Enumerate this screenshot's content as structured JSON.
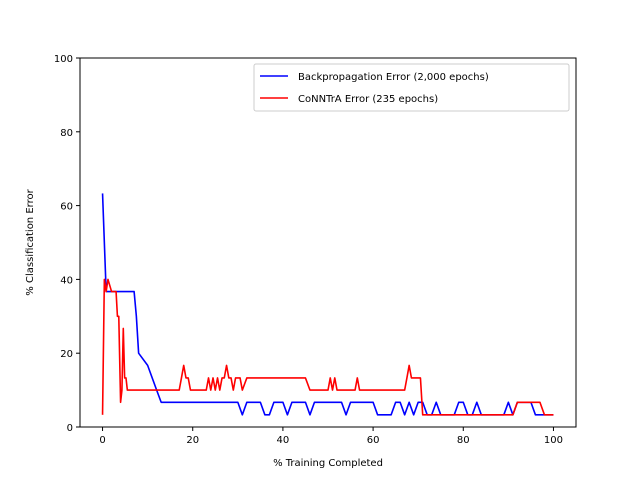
{
  "chart_data": {
    "type": "line",
    "title": "",
    "xlabel": "% Training Completed",
    "ylabel": "% Classification Error",
    "xlim": [
      -5,
      105
    ],
    "ylim": [
      0,
      100
    ],
    "xticks": [
      0,
      20,
      40,
      60,
      80,
      100
    ],
    "yticks": [
      0,
      20,
      40,
      60,
      80,
      100
    ],
    "grid": false,
    "legend_position": "top-right",
    "series": [
      {
        "name": "Backpropagation Error (2,000 epochs)",
        "color": "#0000ff",
        "x": [
          0,
          0.8,
          1,
          7,
          7.5,
          8,
          10,
          12,
          13,
          14,
          30,
          31,
          32,
          35,
          36,
          37,
          38,
          39,
          40,
          41,
          42,
          45,
          46,
          47,
          53,
          54,
          55,
          60,
          61,
          64,
          65,
          66,
          67,
          68,
          69,
          70,
          71,
          72,
          73,
          74,
          75,
          78,
          79,
          80,
          81,
          82,
          83,
          84,
          89,
          90,
          91,
          92,
          93,
          95,
          96,
          97,
          98,
          99,
          100
        ],
        "y": [
          63.3,
          36.7,
          36.7,
          36.7,
          30,
          20,
          16.7,
          10,
          6.7,
          6.7,
          6.7,
          3.3,
          6.7,
          6.7,
          3.3,
          3.3,
          6.7,
          6.7,
          6.7,
          3.3,
          6.7,
          6.7,
          3.3,
          6.7,
          6.7,
          3.3,
          6.7,
          6.7,
          3.3,
          3.3,
          6.7,
          6.7,
          3.3,
          6.7,
          3.3,
          6.7,
          6.7,
          3.3,
          3.3,
          6.7,
          3.3,
          3.3,
          6.7,
          6.7,
          3.3,
          3.3,
          6.7,
          3.3,
          3.3,
          6.7,
          3.3,
          6.7,
          6.7,
          6.7,
          3.3,
          3.3,
          3.3,
          3.3,
          3.3
        ]
      },
      {
        "name": "CoNNTrA Error (235 epochs)",
        "color": "#ff0000",
        "x": [
          0,
          0.4,
          0.8,
          1.2,
          2,
          2.6,
          3,
          3.3,
          3.6,
          4,
          4.3,
          4.6,
          4.9,
          5.2,
          5.5,
          6,
          10,
          17,
          17.5,
          18,
          18.5,
          19,
          19.5,
          20,
          23,
          23.5,
          24,
          24.5,
          25,
          25.5,
          26,
          26.5,
          27,
          27.5,
          28,
          28.5,
          29,
          29.5,
          30,
          30.5,
          31,
          32,
          45,
          46,
          50,
          50.5,
          51,
          51.5,
          52,
          52.5,
          53,
          56,
          56.5,
          57,
          65,
          66,
          67,
          67.5,
          68,
          68.5,
          69,
          69.5,
          70,
          70.5,
          71,
          72,
          90,
          91,
          92,
          95,
          96,
          97,
          98,
          99,
          100
        ],
        "y": [
          3.3,
          40,
          36.7,
          40,
          36.7,
          36.7,
          36.7,
          30,
          30,
          6.7,
          10,
          26.7,
          13.3,
          13.3,
          10,
          10,
          10,
          10,
          13.3,
          16.7,
          13.3,
          13.3,
          10,
          10,
          10,
          13.3,
          10,
          13.3,
          10,
          13.3,
          10,
          13.3,
          13.3,
          16.7,
          13.3,
          13.3,
          10,
          13.3,
          13.3,
          13.3,
          10,
          13.3,
          13.3,
          10,
          10,
          13.3,
          10,
          13.3,
          10,
          10,
          10,
          10,
          13.3,
          10,
          10,
          10,
          10,
          13.3,
          16.7,
          13.3,
          13.3,
          13.3,
          13.3,
          13.3,
          3.3,
          3.3,
          3.3,
          3.3,
          6.7,
          6.7,
          6.7,
          6.7,
          3.3,
          3.3,
          3.3
        ]
      }
    ]
  }
}
